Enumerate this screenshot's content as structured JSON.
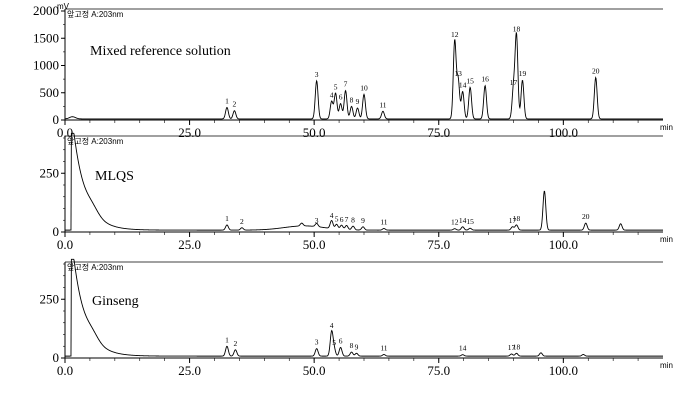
{
  "chart_data": [
    {
      "type": "line",
      "title": "Mixed reference solution",
      "header": "앞고정 A:203nm",
      "y_unit": "mV",
      "x_unit": "min",
      "xlim": [
        0,
        120
      ],
      "ylim": [
        0,
        2000
      ],
      "x_ticks": [
        "0.0",
        "25.0",
        "50.0",
        "75.0",
        "100.0"
      ],
      "y_ticks": [
        "0",
        "500",
        "1000",
        "1500",
        "2000"
      ],
      "baseline": 20,
      "peaks": [
        {
          "label": "1",
          "x": 32.5,
          "y": 230
        },
        {
          "label": "2",
          "x": 34.0,
          "y": 170
        },
        {
          "label": "3",
          "x": 50.5,
          "y": 720
        },
        {
          "label": "4",
          "x": 53.5,
          "y": 340
        },
        {
          "label": "5",
          "x": 54.3,
          "y": 490
        },
        {
          "label": "6",
          "x": 55.3,
          "y": 300
        },
        {
          "label": "7",
          "x": 56.3,
          "y": 540
        },
        {
          "label": "8",
          "x": 57.5,
          "y": 250
        },
        {
          "label": "9",
          "x": 58.7,
          "y": 220
        },
        {
          "label": "10",
          "x": 60.0,
          "y": 470
        },
        {
          "label": "11",
          "x": 63.8,
          "y": 160
        },
        {
          "label": "12",
          "x": 78.2,
          "y": 1450
        },
        {
          "label": "13",
          "x": 78.9,
          "y": 730
        },
        {
          "label": "14",
          "x": 79.8,
          "y": 520
        },
        {
          "label": "15",
          "x": 81.3,
          "y": 600
        },
        {
          "label": "16",
          "x": 84.3,
          "y": 630
        },
        {
          "label": "17",
          "x": 90.0,
          "y": 570
        },
        {
          "label": "18",
          "x": 90.6,
          "y": 1550
        },
        {
          "label": "19",
          "x": 91.8,
          "y": 730
        },
        {
          "label": "20",
          "x": 106.5,
          "y": 780
        }
      ]
    },
    {
      "type": "line",
      "title": "MLQS",
      "header": "앞고정 A:203nm",
      "y_unit": "",
      "x_unit": "min",
      "xlim": [
        0,
        120
      ],
      "ylim": [
        0,
        400
      ],
      "x_ticks": [
        "0.0",
        "25.0",
        "50.0",
        "75.0",
        "100.0"
      ],
      "y_ticks": [
        "0",
        "250"
      ],
      "baseline": 8,
      "peaks": [
        {
          "label": "1",
          "x": 32.5,
          "y": 30
        },
        {
          "label": "2",
          "x": 35.5,
          "y": 18
        },
        {
          "label": "3",
          "x": 50.5,
          "y": 22
        },
        {
          "label": "4",
          "x": 53.5,
          "y": 42
        },
        {
          "label": "5",
          "x": 54.5,
          "y": 28
        },
        {
          "label": "6",
          "x": 55.5,
          "y": 26
        },
        {
          "label": "7",
          "x": 56.5,
          "y": 26
        },
        {
          "label": "8",
          "x": 57.8,
          "y": 24
        },
        {
          "label": "9",
          "x": 59.8,
          "y": 22
        },
        {
          "label": "11",
          "x": 64.0,
          "y": 15
        },
        {
          "label": "12",
          "x": 78.2,
          "y": 14
        },
        {
          "label": "14",
          "x": 79.8,
          "y": 22
        },
        {
          "label": "15",
          "x": 81.3,
          "y": 16
        },
        {
          "label": "17",
          "x": 89.8,
          "y": 22
        },
        {
          "label": "18",
          "x": 90.6,
          "y": 30
        },
        {
          "label": "20",
          "x": 104.5,
          "y": 38
        }
      ],
      "unlabeled_peaks": [
        {
          "x": 96.2,
          "y": 175
        },
        {
          "x": 111.5,
          "y": 35
        },
        {
          "x": 47.5,
          "y": 20
        }
      ]
    },
    {
      "type": "line",
      "title": "Ginseng",
      "header": "앞고정 A:203nm",
      "y_unit": "",
      "x_unit": "min",
      "xlim": [
        0,
        120
      ],
      "ylim": [
        0,
        400
      ],
      "x_ticks": [
        "0.0",
        "25.0",
        "50.0",
        "75.0",
        "100.0"
      ],
      "y_ticks": [
        "0",
        "250"
      ],
      "baseline": 8,
      "peaks": [
        {
          "label": "1",
          "x": 32.5,
          "y": 50
        },
        {
          "label": "2",
          "x": 34.2,
          "y": 35
        },
        {
          "label": "3",
          "x": 50.5,
          "y": 40
        },
        {
          "label": "4",
          "x": 53.5,
          "y": 110
        },
        {
          "label": "5",
          "x": 54.0,
          "y": 38
        },
        {
          "label": "6",
          "x": 55.3,
          "y": 45
        },
        {
          "label": "8",
          "x": 57.5,
          "y": 25
        },
        {
          "label": "9",
          "x": 58.5,
          "y": 20
        },
        {
          "label": "11",
          "x": 64.0,
          "y": 15
        },
        {
          "label": "14",
          "x": 79.8,
          "y": 14
        },
        {
          "label": "17",
          "x": 89.6,
          "y": 17
        },
        {
          "label": "18",
          "x": 90.6,
          "y": 20
        }
      ],
      "unlabeled_peaks": [
        {
          "x": 95.5,
          "y": 22
        },
        {
          "x": 104.0,
          "y": 15
        }
      ]
    }
  ]
}
